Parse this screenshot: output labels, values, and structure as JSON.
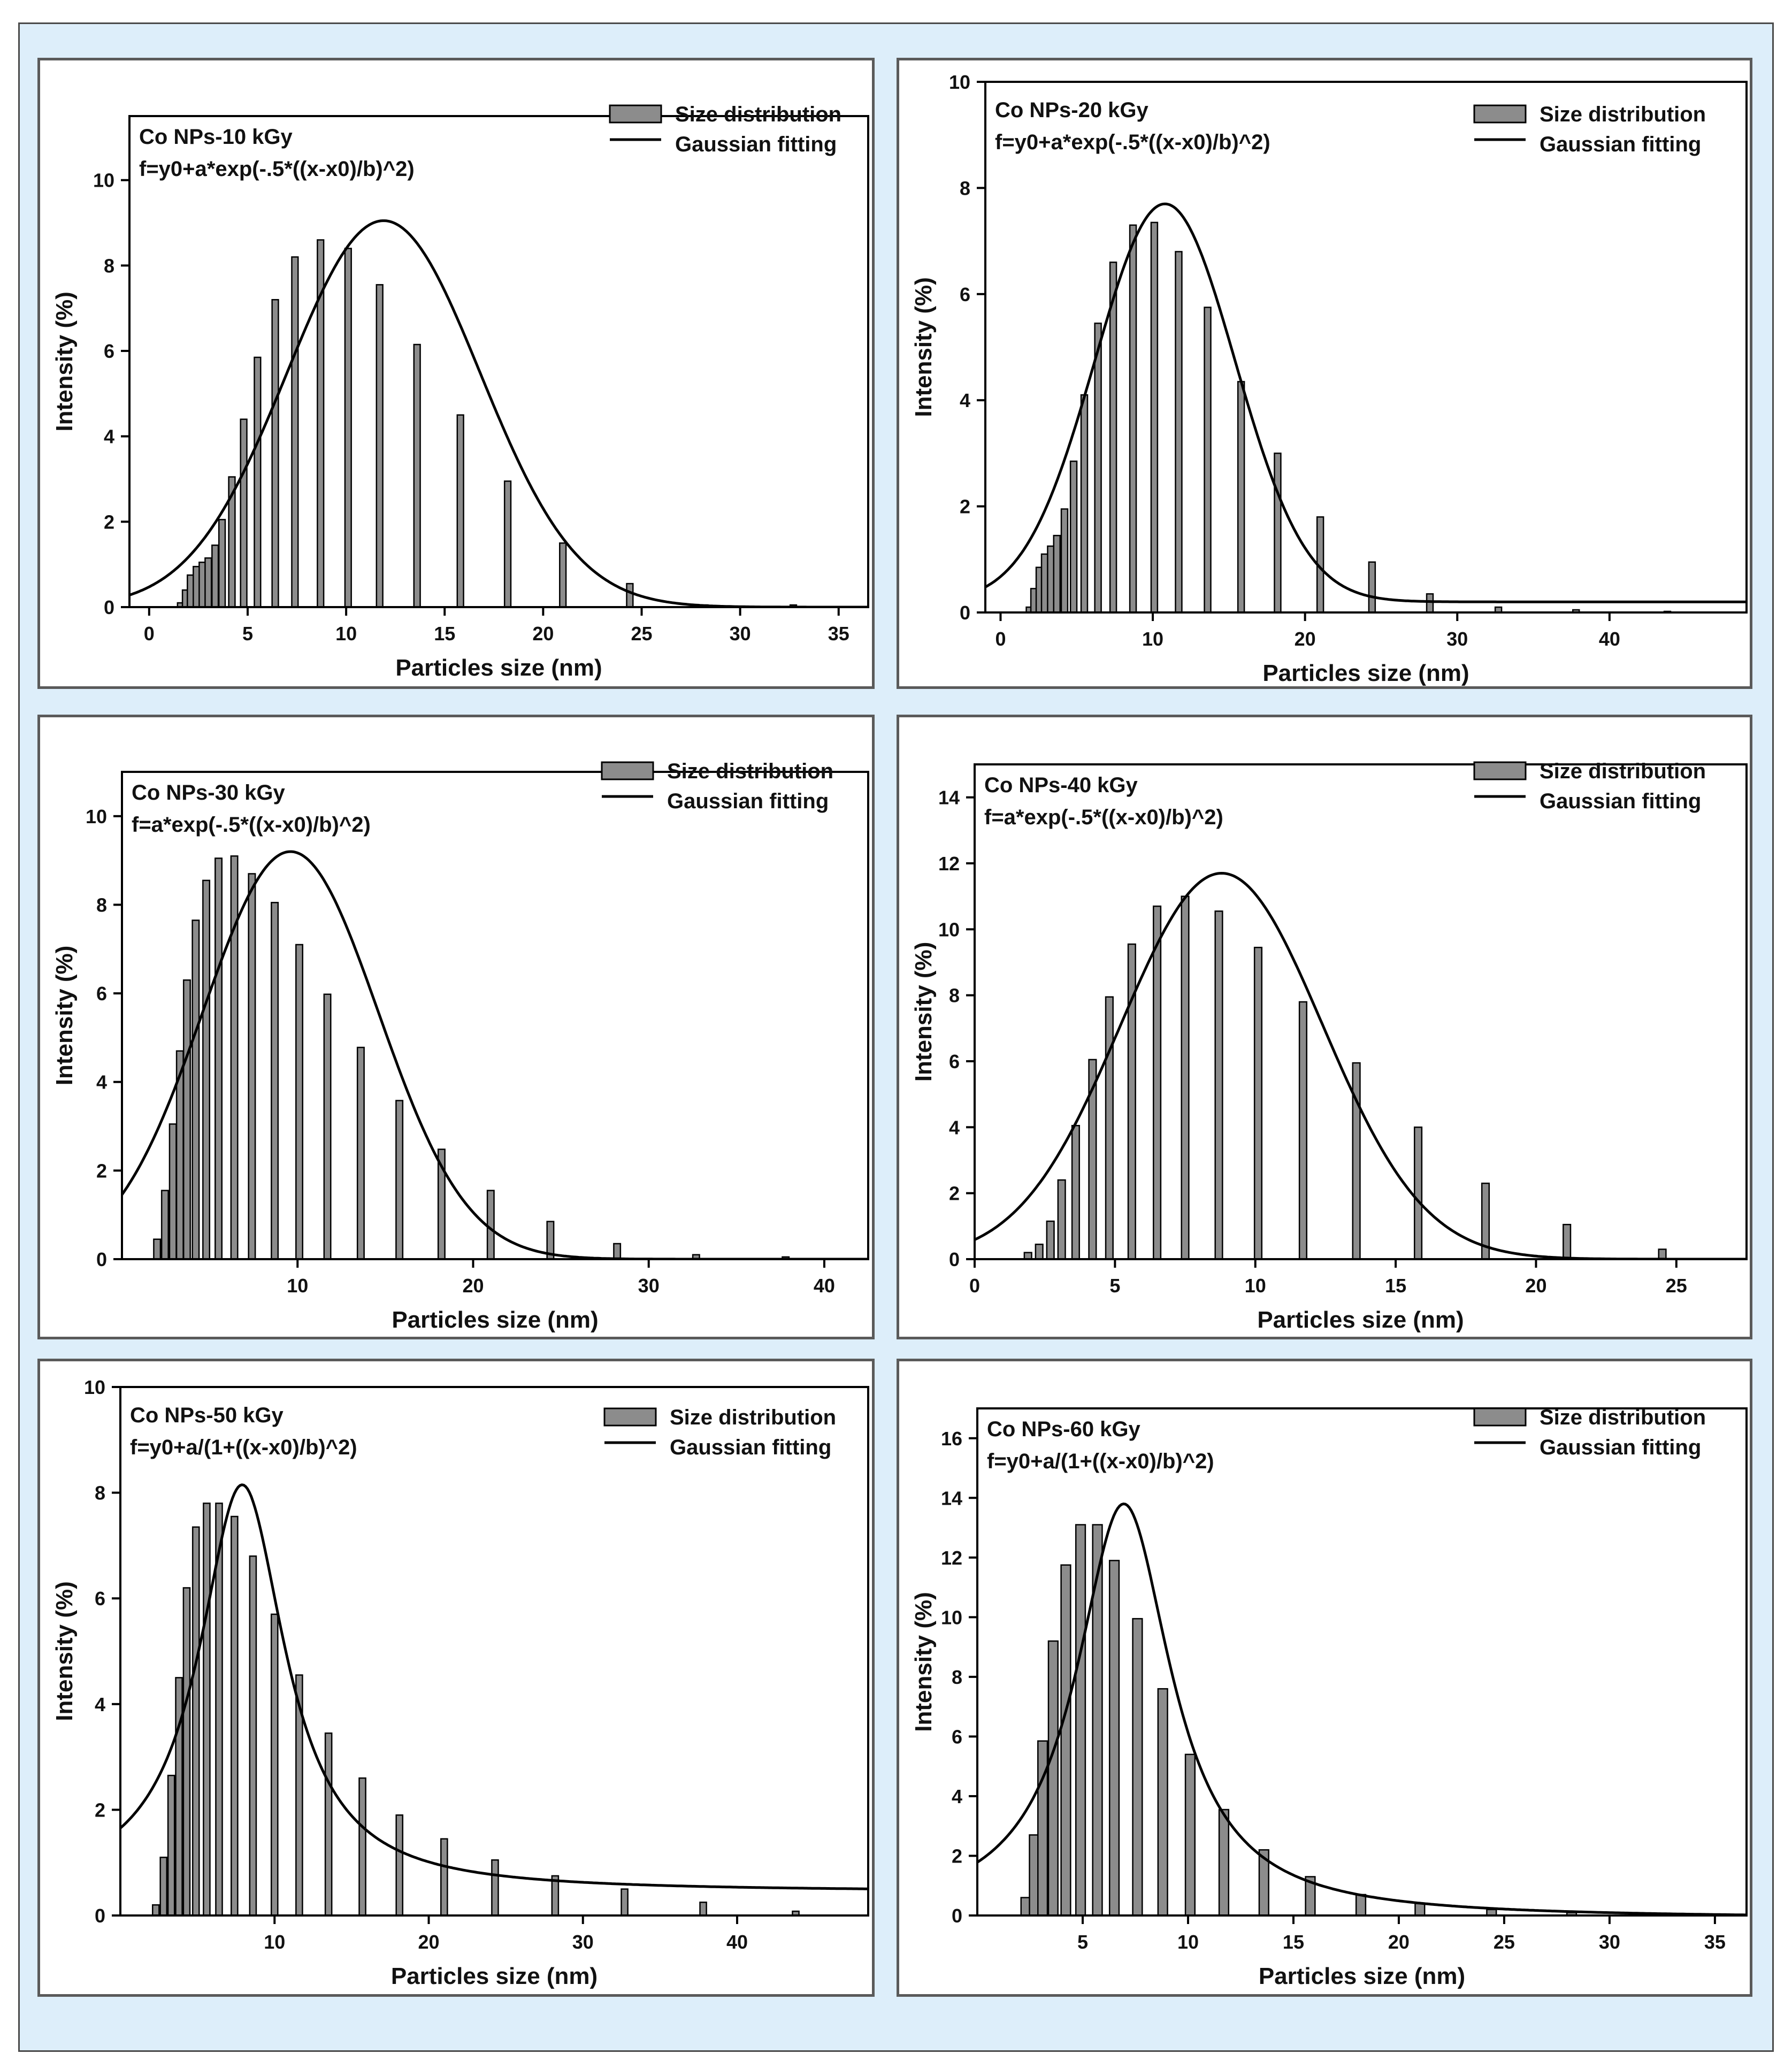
{
  "figure": {
    "background": "#ddeefa",
    "bar_color": "#8c8c8c",
    "line_color": "#000000"
  },
  "chart_data": [
    {
      "type": "bar",
      "panel_label": "Co NPs-10 kGy",
      "equation": "f=y0+a*exp(-.5*((x-x0)/b)^2)",
      "legend": [
        "Size distribution",
        "Gaussian fitting"
      ],
      "xlabel": "Particles size (nm)",
      "ylabel": "Intensity (%)",
      "xlim": [
        -1,
        36.5
      ],
      "ylim": [
        0,
        11.5
      ],
      "xticks": [
        0,
        5,
        10,
        15,
        20,
        25,
        30,
        35
      ],
      "yticks": [
        0,
        2,
        4,
        6,
        8,
        10
      ],
      "bars": {
        "x": [
          1.6,
          1.85,
          2.1,
          2.4,
          2.7,
          3.0,
          3.35,
          3.7,
          4.2,
          4.8,
          5.5,
          6.4,
          7.4,
          8.7,
          10.1,
          11.7,
          13.6,
          15.8,
          18.2,
          21.0,
          24.4,
          28.2,
          32.7
        ],
        "values": [
          0.1,
          0.4,
          0.75,
          0.95,
          1.05,
          1.15,
          1.45,
          2.05,
          3.05,
          4.4,
          5.85,
          7.2,
          8.2,
          8.6,
          8.4,
          7.55,
          6.15,
          4.5,
          2.95,
          1.5,
          0.55,
          0.05,
          0.05
        ],
        "width": 0.32
      },
      "fit": {
        "model": "gauss",
        "y0": 0.0,
        "a": 9.05,
        "x0": 11.9,
        "b": 4.9
      }
    },
    {
      "type": "bar",
      "panel_label": "Co NPs-20 kGy",
      "equation": "f=y0+a*exp(-.5*((x-x0)/b)^2)",
      "legend": [
        "Size distribution",
        "Gaussian fitting"
      ],
      "xlabel": "Particles size (nm)",
      "ylabel": "Intensity (%)",
      "xlim": [
        -1,
        49
      ],
      "ylim": [
        0,
        10
      ],
      "xticks": [
        0,
        10,
        20,
        30,
        40
      ],
      "yticks": [
        0,
        2,
        4,
        6,
        8,
        10
      ],
      "bars": {
        "x": [
          1.9,
          2.2,
          2.55,
          2.9,
          3.3,
          3.7,
          4.2,
          4.8,
          5.5,
          6.4,
          7.4,
          8.7,
          10.1,
          11.7,
          13.6,
          15.8,
          18.2,
          21.0,
          24.4,
          28.2,
          32.7,
          37.8,
          43.8
        ],
        "values": [
          0.1,
          0.45,
          0.85,
          1.1,
          1.25,
          1.45,
          1.95,
          2.85,
          4.1,
          5.45,
          6.6,
          7.3,
          7.35,
          6.8,
          5.75,
          4.35,
          3.0,
          1.8,
          0.95,
          0.35,
          0.1,
          0.05,
          0.02
        ],
        "width": 0.42
      },
      "fit": {
        "model": "gauss",
        "y0": 0.2,
        "a": 7.5,
        "x0": 10.8,
        "b": 4.6
      }
    },
    {
      "type": "bar",
      "panel_label": "Co NPs-30 kGy",
      "equation": "f=a*exp(-.5*((x-x0)/b)^2)",
      "legend": [
        "Size distribution",
        "Gaussian fitting"
      ],
      "xlabel": "Particles size (nm)",
      "ylabel": "Intensity (%)",
      "xlim": [
        0,
        42.5
      ],
      "ylim": [
        0,
        11
      ],
      "xticks": [
        10,
        20,
        30,
        40
      ],
      "yticks": [
        0,
        2,
        4,
        6,
        8,
        10
      ],
      "bars": {
        "x": [
          2.0,
          2.45,
          2.9,
          3.3,
          3.7,
          4.2,
          4.8,
          5.5,
          6.4,
          7.4,
          8.7,
          10.1,
          11.7,
          13.6,
          15.8,
          18.2,
          21.0,
          24.4,
          28.2,
          32.7,
          37.8
        ],
        "values": [
          0.45,
          1.55,
          3.05,
          4.7,
          6.3,
          7.65,
          8.55,
          9.05,
          9.1,
          8.7,
          8.05,
          7.1,
          5.98,
          4.78,
          3.58,
          2.48,
          1.55,
          0.85,
          0.35,
          0.1,
          0.05
        ],
        "width": 0.38
      },
      "fit": {
        "model": "gauss",
        "y0": 0.0,
        "a": 9.2,
        "x0": 9.6,
        "b": 5.0
      }
    },
    {
      "type": "bar",
      "panel_label": "Co NPs-40 kGy",
      "equation": "f=a*exp(-.5*((x-x0)/b)^2)",
      "legend": [
        "Size distribution",
        "Gaussian fitting"
      ],
      "xlabel": "Particles size (nm)",
      "ylabel": "Intensity (%)",
      "xlim": [
        0,
        27.5
      ],
      "ylim": [
        0,
        15
      ],
      "xticks": [
        0,
        5,
        10,
        15,
        20,
        25
      ],
      "yticks": [
        0,
        2,
        4,
        6,
        8,
        10,
        12,
        14
      ],
      "bars": {
        "x": [
          1.9,
          2.3,
          2.7,
          3.1,
          3.6,
          4.2,
          4.8,
          5.6,
          6.5,
          7.5,
          8.7,
          10.1,
          11.7,
          13.6,
          15.8,
          18.2,
          21.1,
          24.5
        ],
        "values": [
          0.2,
          0.45,
          1.15,
          2.4,
          4.05,
          6.05,
          7.95,
          9.55,
          10.7,
          11.0,
          10.55,
          9.45,
          7.8,
          5.95,
          4.0,
          2.3,
          1.05,
          0.3
        ],
        "width": 0.26
      },
      "fit": {
        "model": "gauss",
        "y0": 0.0,
        "a": 11.7,
        "x0": 8.8,
        "b": 3.6
      }
    },
    {
      "type": "bar",
      "panel_label": "Co NPs-50 kGy",
      "equation": "f=y0+a/(1+((x-x0)/b)^2)",
      "legend": [
        "Size distribution",
        "Gaussian fitting"
      ],
      "xlabel": "Particles size (nm)",
      "ylabel": "Intensity (%)",
      "xlim": [
        0,
        48.5
      ],
      "ylim": [
        0,
        10
      ],
      "xticks": [
        10,
        20,
        30,
        40
      ],
      "yticks": [
        0,
        2,
        4,
        6,
        8,
        10
      ],
      "bars": {
        "x": [
          2.3,
          2.8,
          3.3,
          3.8,
          4.3,
          4.9,
          5.6,
          6.4,
          7.4,
          8.6,
          10.0,
          11.6,
          13.5,
          15.7,
          18.1,
          21.0,
          24.3,
          28.2,
          32.7,
          37.8,
          43.8
        ],
        "values": [
          0.2,
          1.1,
          2.65,
          4.5,
          6.2,
          7.35,
          7.8,
          7.8,
          7.55,
          6.8,
          5.7,
          4.55,
          3.45,
          2.6,
          1.9,
          1.45,
          1.05,
          0.75,
          0.5,
          0.25,
          0.08
        ],
        "width": 0.42
      },
      "fit": {
        "model": "lorentz",
        "y0": 0.45,
        "a": 7.7,
        "x0": 7.9,
        "b": 3.4
      }
    },
    {
      "type": "bar",
      "panel_label": "Co NPs-60 kGy",
      "equation": "f=y0+a/(1+((x-x0)/b)^2)",
      "legend": [
        "Size distribution",
        "Gaussian fitting"
      ],
      "xlabel": "Particles size (nm)",
      "ylabel": "Intensity (%)",
      "xlim": [
        0,
        36.5
      ],
      "ylim": [
        0,
        17
      ],
      "xticks": [
        5,
        10,
        15,
        20,
        25,
        30,
        35
      ],
      "yticks": [
        0,
        2,
        4,
        6,
        8,
        10,
        12,
        14,
        16
      ],
      "bars": {
        "x": [
          2.3,
          2.7,
          3.1,
          3.6,
          4.2,
          4.9,
          5.7,
          6.5,
          7.6,
          8.8,
          10.1,
          11.7,
          13.6,
          15.8,
          18.2,
          21.0,
          24.4,
          28.2
        ],
        "values": [
          0.6,
          2.7,
          5.85,
          9.2,
          11.75,
          13.1,
          13.1,
          11.9,
          9.95,
          7.6,
          5.4,
          3.55,
          2.2,
          1.3,
          0.7,
          0.4,
          0.2,
          0.1
        ],
        "width": 0.45
      },
      "fit": {
        "model": "lorentz",
        "y0": -0.1,
        "a": 13.9,
        "x0": 6.95,
        "b": 2.75
      }
    }
  ]
}
